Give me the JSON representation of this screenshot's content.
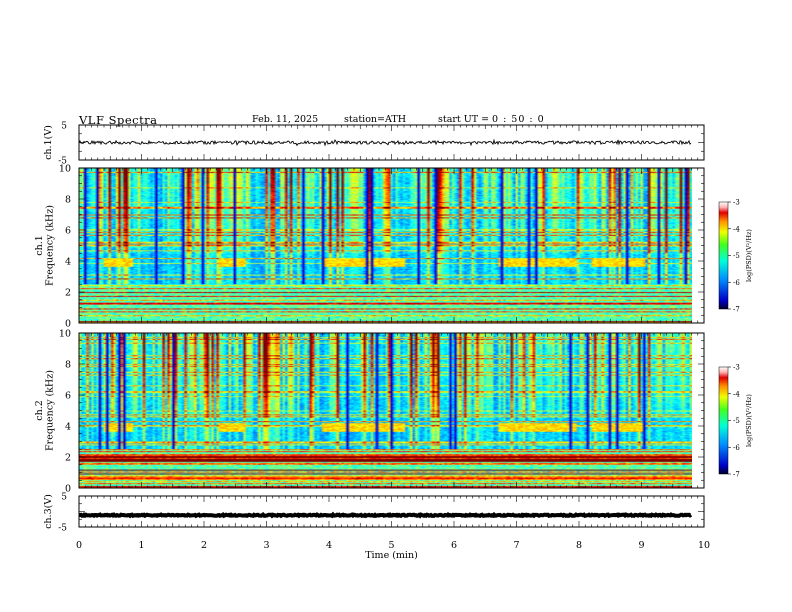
{
  "header": {
    "title": "VLF  Spectra",
    "date": "Feb. 11, 2025",
    "station": "station=ATH",
    "start_ut_label": "start  UT  =",
    "start_ut_value": "0 : 50 : 0"
  },
  "chart_data": [
    {
      "type": "line",
      "panel": "ch1-waveform",
      "ylabel": "ch.1(V)",
      "ylim": [
        -5,
        5
      ],
      "ytick_labels": [
        "5",
        "-5"
      ],
      "xlim": [
        0,
        10
      ],
      "x_end": 9.8,
      "series_level": 0
    },
    {
      "type": "heatmap",
      "panel": "ch1-spectrogram",
      "ylabel": "ch.1\nFrequency  (kHz)",
      "ylim": [
        0,
        10
      ],
      "ytick_labels": [
        "0",
        "2",
        "4",
        "6",
        "8",
        "10"
      ],
      "xlim": [
        0,
        10
      ],
      "x_end": 9.8,
      "colorbar": {
        "label": "log(PSD)(V²/Hz)",
        "range": [
          -7,
          -3
        ],
        "tick_labels": [
          "-3",
          "-4",
          "-5",
          "-6",
          "-7"
        ]
      },
      "transmitter_blocks_min": [
        [
          0.4,
          0.85
        ],
        [
          2.25,
          2.65
        ],
        [
          3.9,
          5.2
        ],
        [
          6.7,
          7.95
        ],
        [
          8.2,
          9.05
        ]
      ],
      "transmitter_freq_khz": [
        3.6,
        4.2
      ]
    },
    {
      "type": "heatmap",
      "panel": "ch2-spectrogram",
      "ylabel": "ch.2\nFrequency  (kHz)",
      "ylim": [
        0,
        10
      ],
      "ytick_labels": [
        "0",
        "2",
        "4",
        "6",
        "8",
        "10"
      ],
      "xlim": [
        0,
        10
      ],
      "x_end": 9.8,
      "colorbar": {
        "label": "log(PSD)(V²/Hz)",
        "range": [
          -7,
          -3
        ],
        "tick_labels": [
          "-3",
          "-4",
          "-5",
          "-6",
          "-7"
        ]
      },
      "transmitter_blocks_min": [
        [
          0.4,
          0.85
        ],
        [
          2.25,
          2.65
        ],
        [
          3.9,
          5.2
        ],
        [
          6.7,
          7.95
        ],
        [
          8.2,
          9.05
        ]
      ],
      "transmitter_freq_khz": [
        3.6,
        4.2
      ]
    },
    {
      "type": "line",
      "panel": "ch3-waveform",
      "ylabel": "ch.3(V)",
      "ylim": [
        -5,
        5
      ],
      "ytick_labels": [
        "5",
        "-5"
      ],
      "xlim": [
        0,
        10
      ],
      "x_end": 9.8,
      "series_level": -1.2,
      "xlabel": "Time  (min)",
      "xtick_labels": [
        "0",
        "1",
        "2",
        "3",
        "4",
        "5",
        "6",
        "7",
        "8",
        "9",
        "10"
      ]
    }
  ]
}
